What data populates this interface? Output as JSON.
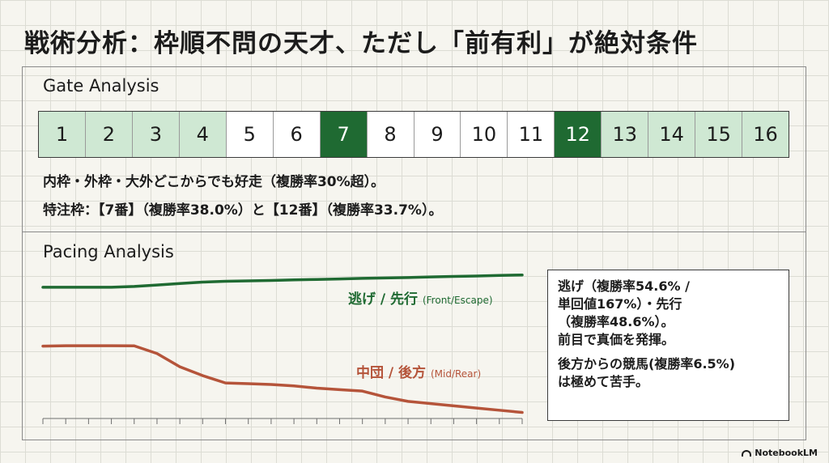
{
  "title": "戦術分析：枠順不問の天才、ただし「前有利」が絶対条件",
  "gate_section": {
    "heading": "Gate Analysis",
    "gates": [
      {
        "label": "1",
        "style": "light"
      },
      {
        "label": "2",
        "style": "light"
      },
      {
        "label": "3",
        "style": "light"
      },
      {
        "label": "4",
        "style": "light"
      },
      {
        "label": "5",
        "style": "plain"
      },
      {
        "label": "6",
        "style": "plain"
      },
      {
        "label": "7",
        "style": "dark"
      },
      {
        "label": "8",
        "style": "plain"
      },
      {
        "label": "9",
        "style": "plain"
      },
      {
        "label": "10",
        "style": "plain"
      },
      {
        "label": "11",
        "style": "plain"
      },
      {
        "label": "12",
        "style": "dark"
      },
      {
        "label": "13",
        "style": "light"
      },
      {
        "label": "14",
        "style": "light"
      },
      {
        "label": "15",
        "style": "light"
      },
      {
        "label": "16",
        "style": "light"
      }
    ],
    "note_line1": "内枠・外枠・大外どこからでも好走（複勝率30%超）。",
    "note_line2": "特注枠：【7番】（複勝率38.0%）と【12番】（複勝率33.7%）。"
  },
  "pacing_section": {
    "heading": "Pacing Analysis",
    "front_label": "逃げ / 先行",
    "front_label_en": "(Front/Escape)",
    "rear_label": "中団 / 後方",
    "rear_label_en": "(Mid/Rear)",
    "info_lines": [
      "逃げ（複勝率54.6% /",
      "単回値167%）・先行",
      "（複勝率48.6%）。",
      "前目で真価を発揮。"
    ],
    "info_lines2": [
      "後方からの競馬(複勝率6.5%)",
      "は極めて苦手。"
    ]
  },
  "chart_data": {
    "type": "line",
    "x": [
      0,
      1,
      2,
      3,
      4,
      5,
      6,
      7,
      8,
      9,
      10,
      11,
      12,
      13,
      14,
      15,
      16,
      17,
      18,
      19,
      20,
      21
    ],
    "ylim": [
      0,
      100
    ],
    "series": [
      {
        "color": "#1f6a32",
        "values": [
          88,
          88,
          88,
          88,
          88.5,
          89.5,
          90.5,
          91.5,
          92,
          92.3,
          92.6,
          93,
          93.3,
          93.6,
          94,
          94.3,
          94.6,
          95,
          95.3,
          95.6,
          96,
          96.3
        ]
      },
      {
        "color": "#b5543a",
        "values": [
          48,
          48.3,
          48.3,
          48.3,
          48.2,
          43,
          34,
          28,
          23,
          22.5,
          22,
          21,
          19.5,
          18.5,
          17.5,
          13.5,
          10.5,
          9,
          7.5,
          6,
          4.5,
          3
        ]
      }
    ],
    "grid": true,
    "legend": "inline"
  }
}
